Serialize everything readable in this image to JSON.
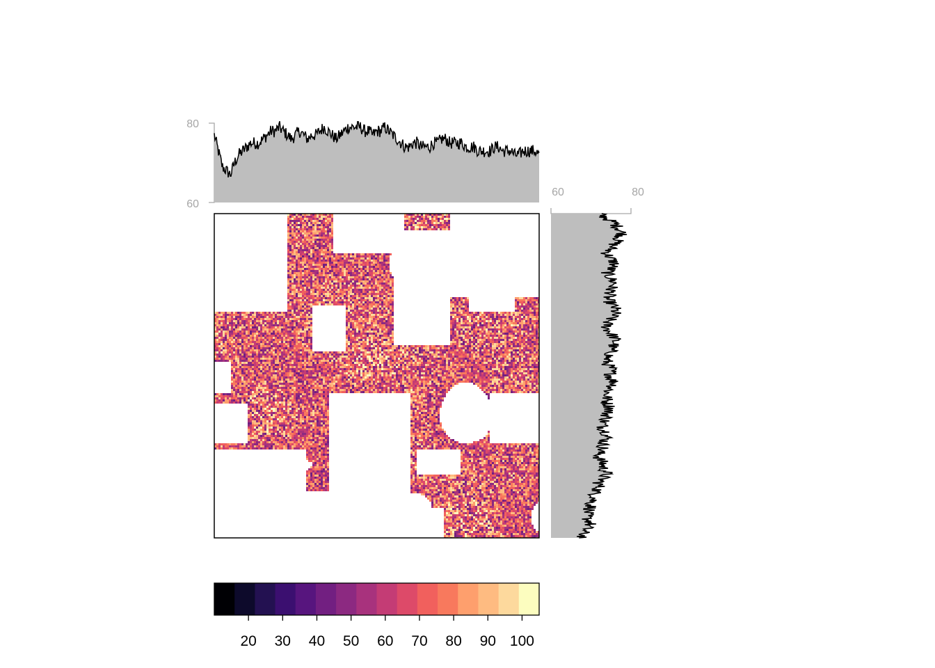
{
  "chart_data": [
    {
      "type": "heatmap",
      "role": "raster-map",
      "title": "",
      "xlabel": "",
      "ylabel": "",
      "value_range": [
        10,
        105
      ],
      "palette": "magma",
      "pattern": "canopy patches with white gaps; values concentrated 40–100",
      "coverage_fraction": 0.62
    },
    {
      "type": "area",
      "role": "top-marginal-profile",
      "ylim": [
        60,
        80
      ],
      "yticks": [
        "60",
        "80"
      ],
      "fill": "#bebebe",
      "line": "#000000",
      "values": [
        77,
        73,
        69,
        68,
        67,
        70,
        72,
        73,
        74,
        75,
        75,
        75,
        76,
        77,
        78,
        78,
        79,
        78,
        77,
        76,
        77,
        78,
        77,
        76,
        77,
        77,
        78,
        79,
        78,
        77,
        76,
        77,
        78,
        79,
        79,
        79,
        79,
        78,
        78,
        77,
        78,
        78,
        79,
        78,
        77,
        76,
        75,
        74,
        74,
        75,
        75,
        74,
        74,
        74,
        75,
        75,
        76,
        76,
        75,
        75,
        75,
        75,
        74,
        74,
        74,
        73,
        73,
        73,
        73,
        74,
        74,
        73,
        73,
        73,
        72,
        72,
        73,
        73,
        73,
        73,
        72
      ]
    },
    {
      "type": "area",
      "role": "right-marginal-profile",
      "xlim": [
        60,
        80
      ],
      "xticks": [
        "60",
        "80"
      ],
      "fill": "#bebebe",
      "line": "#000000",
      "values": [
        72,
        74,
        76,
        77,
        78,
        77,
        76,
        75,
        74,
        75,
        76,
        75,
        74,
        75,
        76,
        75,
        75,
        74,
        75,
        76,
        76,
        75,
        74,
        74,
        75,
        76,
        76,
        75,
        75,
        74,
        74,
        75,
        75,
        75,
        76,
        75,
        74,
        74,
        74,
        75,
        74,
        74,
        73,
        73,
        74,
        74,
        73,
        73,
        72,
        72,
        73,
        73,
        74,
        73,
        72,
        72,
        71,
        71,
        70,
        70,
        69,
        69,
        70,
        69,
        68,
        68
      ]
    },
    {
      "type": "legend-colorbar",
      "role": "color-key",
      "range": [
        10,
        105
      ],
      "ticks": [
        "20",
        "30",
        "40",
        "50",
        "60",
        "70",
        "80",
        "90",
        "100"
      ],
      "tick_values": [
        20,
        30,
        40,
        50,
        60,
        70,
        80,
        90,
        100
      ],
      "colors": [
        "#000004",
        "#0d0a2b",
        "#231151",
        "#3b0f70",
        "#57157e",
        "#721f81",
        "#8c2981",
        "#a8327d",
        "#c43c75",
        "#dd4a69",
        "#f1605d",
        "#f8795d",
        "#fe9f6d",
        "#febb81",
        "#fdd99d",
        "#fcfdbf"
      ]
    }
  ]
}
